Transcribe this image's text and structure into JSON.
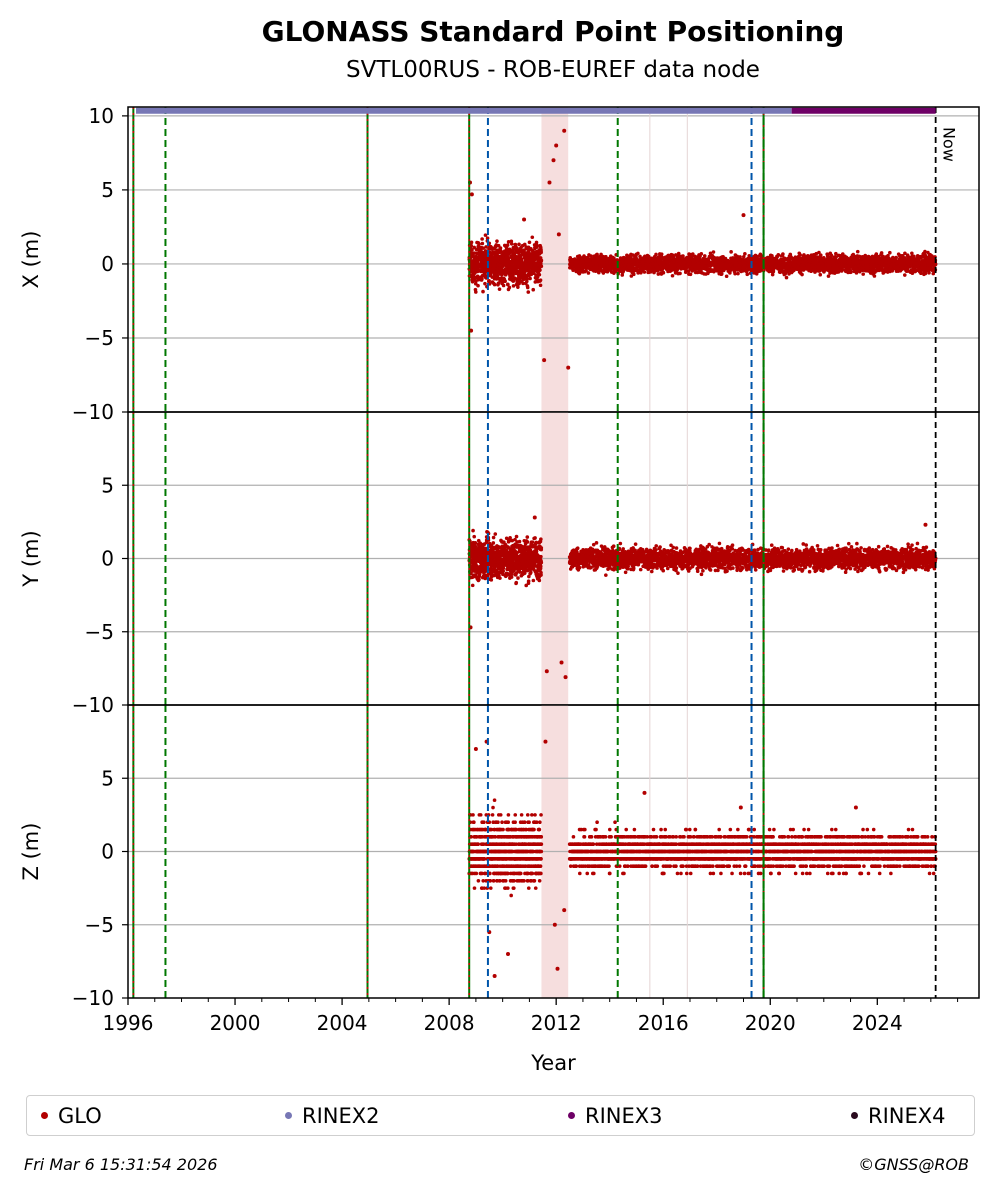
{
  "header": {
    "title": "GLONASS Standard Point Positioning",
    "subtitle": "SVTL00RUS - ROB-EUREF data node"
  },
  "footer": {
    "timestamp": "Fri Mar  6 15:31:54 2026",
    "credit": "©GNSS@ROB"
  },
  "legend": [
    {
      "label": "GLO",
      "color": "#b20000"
    },
    {
      "label": "RINEX2",
      "color": "#7777b5"
    },
    {
      "label": "RINEX3",
      "color": "#6e0066"
    },
    {
      "label": "RINEX4",
      "color": "#2a0a1e"
    }
  ],
  "chart_data": {
    "type": "scatter",
    "xlabel": "Year",
    "xlim": [
      1996.0,
      2027.8
    ],
    "x_ticks": [
      1996,
      2000,
      2004,
      2008,
      2012,
      2016,
      2020,
      2024
    ],
    "now_label": "Now",
    "now_year": 2026.18,
    "panels": [
      {
        "ylabel": "X (m)",
        "ylim": [
          -10,
          10.6
        ],
        "y_ticks": [
          -10,
          -5,
          0,
          5,
          10
        ],
        "data_start": 2008.75,
        "noise_early": 1.2,
        "noise_late": 0.55,
        "outliers": [
          [
            2008.78,
            5.5
          ],
          [
            2008.85,
            4.7
          ],
          [
            2008.82,
            -4.5
          ],
          [
            2011.55,
            -6.5
          ],
          [
            2011.75,
            5.5
          ],
          [
            2011.9,
            7.0
          ],
          [
            2012.0,
            8.0
          ],
          [
            2012.3,
            9.0
          ],
          [
            2012.45,
            -7.0
          ],
          [
            2012.1,
            2.0
          ],
          [
            2019.0,
            3.3
          ],
          [
            2010.8,
            3.0
          ]
        ]
      },
      {
        "ylabel": "Y (m)",
        "ylim": [
          -10,
          10
        ],
        "y_ticks": [
          -10,
          -5,
          0,
          5
        ],
        "data_start": 2008.75,
        "noise_early": 1.2,
        "noise_late": 0.65,
        "outliers": [
          [
            2008.8,
            -4.7
          ],
          [
            2011.65,
            -7.7
          ],
          [
            2012.2,
            -7.1
          ],
          [
            2012.35,
            -8.1
          ],
          [
            2011.2,
            2.8
          ],
          [
            2025.8,
            2.3
          ]
        ]
      },
      {
        "ylabel": "Z (m)",
        "ylim": [
          -10,
          10
        ],
        "y_ticks": [
          -10,
          -5,
          0,
          5
        ],
        "data_start": 2008.75,
        "noise_early": 2.0,
        "noise_late": 1.1,
        "outliers": [
          [
            2009.4,
            7.5
          ],
          [
            2009.0,
            7.0
          ],
          [
            2011.6,
            7.5
          ],
          [
            2010.2,
            -7.0
          ],
          [
            2009.7,
            -8.5
          ],
          [
            2012.05,
            -8.0
          ],
          [
            2011.95,
            -5.0
          ],
          [
            2012.3,
            -4.0
          ],
          [
            2015.3,
            4.0
          ],
          [
            2018.9,
            3.0
          ],
          [
            2023.2,
            3.0
          ],
          [
            2009.5,
            -5.5
          ]
        ]
      }
    ],
    "rinex_bar": {
      "rinex2": [
        1996.3,
        2020.8
      ],
      "rinex3": [
        2020.8,
        2026.18
      ],
      "y": 10.35
    },
    "gap_bands": [
      [
        2011.45,
        2012.45
      ]
    ],
    "green_dashed": [
      1997.4,
      2014.3,
      2019.75
    ],
    "blue_dashed": [
      2009.45,
      2019.3
    ],
    "red_green_lines": [
      1996.2,
      2004.95,
      2008.75,
      2019.75
    ],
    "thin_lines": [
      2015.5,
      2016.9
    ]
  }
}
